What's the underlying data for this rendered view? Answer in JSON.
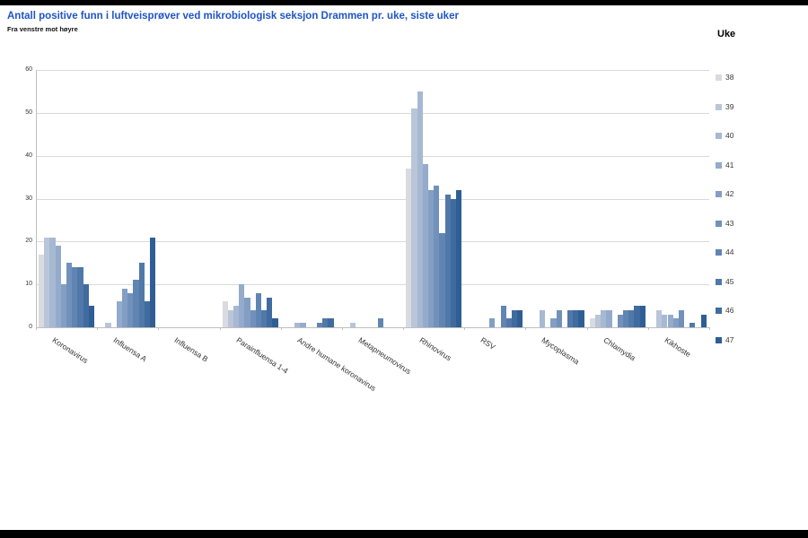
{
  "page": {
    "title": "Antall positive funn i luftveisprøver ved mikrobiologisk seksjon Drammen pr. uke, siste uker",
    "subtitle": "Fra venstre mot høyre",
    "title_color": "#1f55c4"
  },
  "legend": {
    "title": "Uke",
    "items": [
      "38",
      "39",
      "40",
      "41",
      "42",
      "43",
      "44",
      "45",
      "46",
      "47"
    ]
  },
  "chart_data": {
    "type": "bar",
    "title": "Antall positive funn i luftveisprøver ved mikrobiologisk seksjon Drammen pr. uke, siste uker",
    "subtitle": "Fra venstre mot høyre",
    "xlabel": "",
    "ylabel": "",
    "ylim": [
      0,
      60
    ],
    "yticks": [
      0,
      10,
      20,
      30,
      40,
      50,
      60
    ],
    "grid": true,
    "legend_position": "right",
    "legend_title": "Uke",
    "categories": [
      "Koronavirus",
      "Influensa A",
      "Influensa B",
      "Parainfluensa 1-4",
      "Andre humane koronavirus",
      "Metapneumovirus",
      "Rhinovirus",
      "RSV",
      "Mycoplasma",
      "Chlamydia",
      "Kikhoste"
    ],
    "series": [
      {
        "name": "38",
        "color": "#d9dbe0",
        "values": [
          17,
          0,
          0,
          6,
          0,
          0,
          37,
          0,
          0,
          2,
          0
        ]
      },
      {
        "name": "39",
        "color": "#b9c5d9",
        "values": [
          21,
          1,
          0,
          4,
          0,
          1,
          51,
          0,
          0,
          3,
          4
        ]
      },
      {
        "name": "40",
        "color": "#a7b8d2",
        "values": [
          21,
          0,
          0,
          5,
          1,
          0,
          55,
          0,
          4,
          4,
          3
        ]
      },
      {
        "name": "41",
        "color": "#94abcb",
        "values": [
          19,
          6,
          0,
          10,
          1,
          0,
          38,
          0,
          0,
          4,
          3
        ]
      },
      {
        "name": "42",
        "color": "#829ec4",
        "values": [
          10,
          9,
          0,
          7,
          0,
          0,
          32,
          2,
          2,
          0,
          2
        ]
      },
      {
        "name": "43",
        "color": "#7191bb",
        "values": [
          15,
          8,
          0,
          4,
          0,
          0,
          33,
          0,
          4,
          3,
          4
        ]
      },
      {
        "name": "44",
        "color": "#6085b2",
        "values": [
          14,
          11,
          0,
          8,
          1,
          2,
          22,
          5,
          0,
          4,
          0
        ]
      },
      {
        "name": "45",
        "color": "#5078a9",
        "values": [
          14,
          15,
          0,
          4,
          2,
          0,
          31,
          2,
          4,
          4,
          1
        ]
      },
      {
        "name": "46",
        "color": "#406b9f",
        "values": [
          10,
          6,
          0,
          7,
          2,
          0,
          30,
          4,
          4,
          5,
          0
        ]
      },
      {
        "name": "47",
        "color": "#2f5e95",
        "values": [
          5,
          21,
          0,
          2,
          0,
          0,
          32,
          4,
          4,
          5,
          3
        ]
      }
    ]
  }
}
